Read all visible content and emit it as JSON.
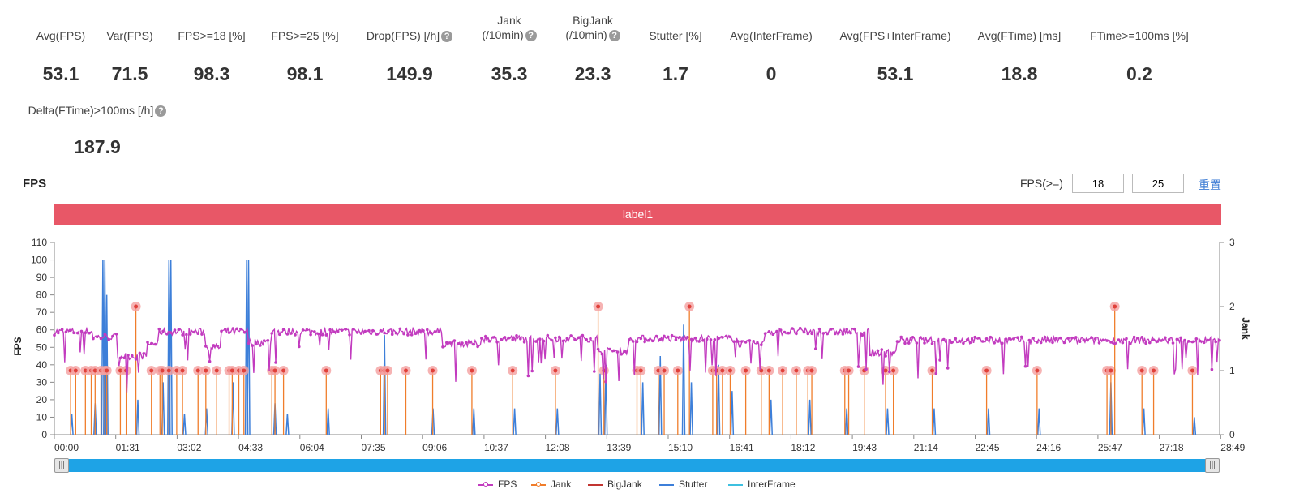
{
  "stats": [
    {
      "label": "Avg(FPS)",
      "value": "53.1",
      "help": false
    },
    {
      "label": "Var(FPS)",
      "value": "71.5",
      "help": false
    },
    {
      "label": "FPS>=18 [%]",
      "value": "98.3",
      "help": false
    },
    {
      "label": "FPS>=25 [%]",
      "value": "98.1",
      "help": false
    },
    {
      "label": "Drop(FPS) [/h]",
      "value": "149.9",
      "help": true
    },
    {
      "label": "Jank",
      "label2": "(/10min)",
      "value": "35.3",
      "help": true
    },
    {
      "label": "BigJank",
      "label2": "(/10min)",
      "value": "23.3",
      "help": true
    },
    {
      "label": "Stutter [%]",
      "value": "1.7",
      "help": false
    },
    {
      "label": "Avg(InterFrame)",
      "value": "0",
      "help": false
    },
    {
      "label": "Avg(FPS+InterFrame)",
      "value": "53.1",
      "help": false
    },
    {
      "label": "Avg(FTime) [ms]",
      "value": "18.8",
      "help": false
    },
    {
      "label": "FTime>=100ms [%]",
      "value": "0.2",
      "help": false
    },
    {
      "label": "Delta(FTime)>100ms [/h]",
      "value": "187.9",
      "help": true
    }
  ],
  "help_glyph": "?",
  "section_title": "FPS",
  "fps_filter": {
    "label": "FPS(>=)",
    "value1": "18",
    "value2": "25",
    "reset_label": "重置"
  },
  "label_bar": "label1",
  "scrollbar": {
    "handle_glyph": "|||"
  },
  "chart_data": {
    "type": "line",
    "x_ticks": [
      "00:00",
      "01:31",
      "03:02",
      "04:33",
      "06:04",
      "07:35",
      "09:06",
      "10:37",
      "12:08",
      "13:39",
      "15:10",
      "16:41",
      "18:12",
      "19:43",
      "21:14",
      "22:45",
      "24:16",
      "25:47",
      "27:18",
      "28:49"
    ],
    "ylabel": "FPS",
    "ylabel_right": "Jank",
    "y_ticks": [
      0,
      10,
      20,
      30,
      40,
      50,
      60,
      70,
      80,
      90,
      100,
      110
    ],
    "y2_ticks": [
      0,
      1,
      2,
      3
    ],
    "ylim": [
      0,
      110
    ],
    "y2lim": [
      0,
      3
    ],
    "duration_min": 30,
    "grid": false,
    "legend_position": "bottom",
    "series": [
      {
        "name": "FPS",
        "color": "#c23bbf",
        "segments": [
          {
            "from": 0.0,
            "to": 1.0,
            "level": 59
          },
          {
            "from": 1.0,
            "to": 1.7,
            "level": 56
          },
          {
            "from": 1.7,
            "to": 2.4,
            "level": 45
          },
          {
            "from": 2.4,
            "to": 2.7,
            "level": 52
          },
          {
            "from": 2.7,
            "to": 3.9,
            "level": 59
          },
          {
            "from": 3.9,
            "to": 4.3,
            "level": 50
          },
          {
            "from": 4.3,
            "to": 5.0,
            "level": 59
          },
          {
            "from": 5.0,
            "to": 5.6,
            "level": 53
          },
          {
            "from": 5.6,
            "to": 10.0,
            "level": 59
          },
          {
            "from": 10.0,
            "to": 11.0,
            "level": 52
          },
          {
            "from": 11.0,
            "to": 14.0,
            "level": 55
          },
          {
            "from": 14.0,
            "to": 14.8,
            "level": 48
          },
          {
            "from": 14.8,
            "to": 17.6,
            "level": 55
          },
          {
            "from": 17.6,
            "to": 18.3,
            "level": 52
          },
          {
            "from": 18.3,
            "to": 21.0,
            "level": 59
          },
          {
            "from": 21.0,
            "to": 21.7,
            "level": 47
          },
          {
            "from": 21.7,
            "to": 26.5,
            "level": 54
          },
          {
            "from": 26.5,
            "to": 30.0,
            "level": 54
          }
        ]
      },
      {
        "name": "Jank",
        "color": "#f07d2b",
        "events": [
          0.42,
          0.55,
          0.8,
          0.95,
          1.05,
          1.2,
          1.3,
          1.35,
          1.7,
          1.85,
          2.1,
          2.5,
          2.72,
          2.78,
          2.95,
          3.15,
          3.3,
          3.7,
          3.9,
          4.18,
          4.5,
          4.58,
          4.75,
          4.88,
          5.6,
          5.68,
          5.9,
          7.0,
          8.4,
          8.5,
          8.58,
          9.05,
          9.74,
          10.75,
          11.8,
          12.9,
          14.0,
          14.15,
          15.0,
          15.1,
          15.55,
          15.7,
          16.05,
          16.35,
          16.95,
          17.05,
          17.2,
          17.4,
          17.8,
          18.2,
          18.4,
          18.75,
          19.1,
          19.4,
          19.5,
          20.35,
          20.45,
          20.85,
          21.4,
          21.6,
          22.6,
          24.0,
          25.3,
          27.1,
          27.2,
          27.3,
          28.0,
          28.3,
          29.3
        ],
        "tall": [
          2.1,
          14.0,
          16.35,
          27.3
        ]
      },
      {
        "name": "BigJank",
        "color": "#c23531"
      },
      {
        "name": "Stutter",
        "color": "#3d7fd9",
        "spikes": [
          {
            "t": 1.25,
            "v": 100
          },
          {
            "t": 1.3,
            "v": 100
          },
          {
            "t": 1.35,
            "v": 80
          },
          {
            "t": 2.95,
            "v": 100
          },
          {
            "t": 3.0,
            "v": 100
          },
          {
            "t": 4.95,
            "v": 100
          },
          {
            "t": 5.0,
            "v": 100
          },
          {
            "t": 8.5,
            "v": 57
          },
          {
            "t": 16.2,
            "v": 63
          },
          {
            "t": 0.45,
            "v": 12
          },
          {
            "t": 1.05,
            "v": 18
          },
          {
            "t": 2.15,
            "v": 20
          },
          {
            "t": 2.8,
            "v": 30
          },
          {
            "t": 3.35,
            "v": 12
          },
          {
            "t": 3.92,
            "v": 15
          },
          {
            "t": 4.6,
            "v": 30
          },
          {
            "t": 5.68,
            "v": 18
          },
          {
            "t": 6.0,
            "v": 12
          },
          {
            "t": 7.05,
            "v": 15
          },
          {
            "t": 9.75,
            "v": 15
          },
          {
            "t": 10.8,
            "v": 15
          },
          {
            "t": 11.85,
            "v": 15
          },
          {
            "t": 12.95,
            "v": 15
          },
          {
            "t": 14.05,
            "v": 35
          },
          {
            "t": 14.2,
            "v": 40
          },
          {
            "t": 15.15,
            "v": 30
          },
          {
            "t": 15.6,
            "v": 45
          },
          {
            "t": 16.4,
            "v": 30
          },
          {
            "t": 17.1,
            "v": 40
          },
          {
            "t": 17.45,
            "v": 25
          },
          {
            "t": 18.45,
            "v": 20
          },
          {
            "t": 19.45,
            "v": 20
          },
          {
            "t": 20.4,
            "v": 15
          },
          {
            "t": 21.45,
            "v": 15
          },
          {
            "t": 22.65,
            "v": 15
          },
          {
            "t": 24.05,
            "v": 15
          },
          {
            "t": 25.35,
            "v": 15
          },
          {
            "t": 27.2,
            "v": 30
          },
          {
            "t": 28.05,
            "v": 15
          },
          {
            "t": 29.35,
            "v": 10
          }
        ]
      },
      {
        "name": "InterFrame",
        "color": "#3ec0e0"
      }
    ]
  }
}
